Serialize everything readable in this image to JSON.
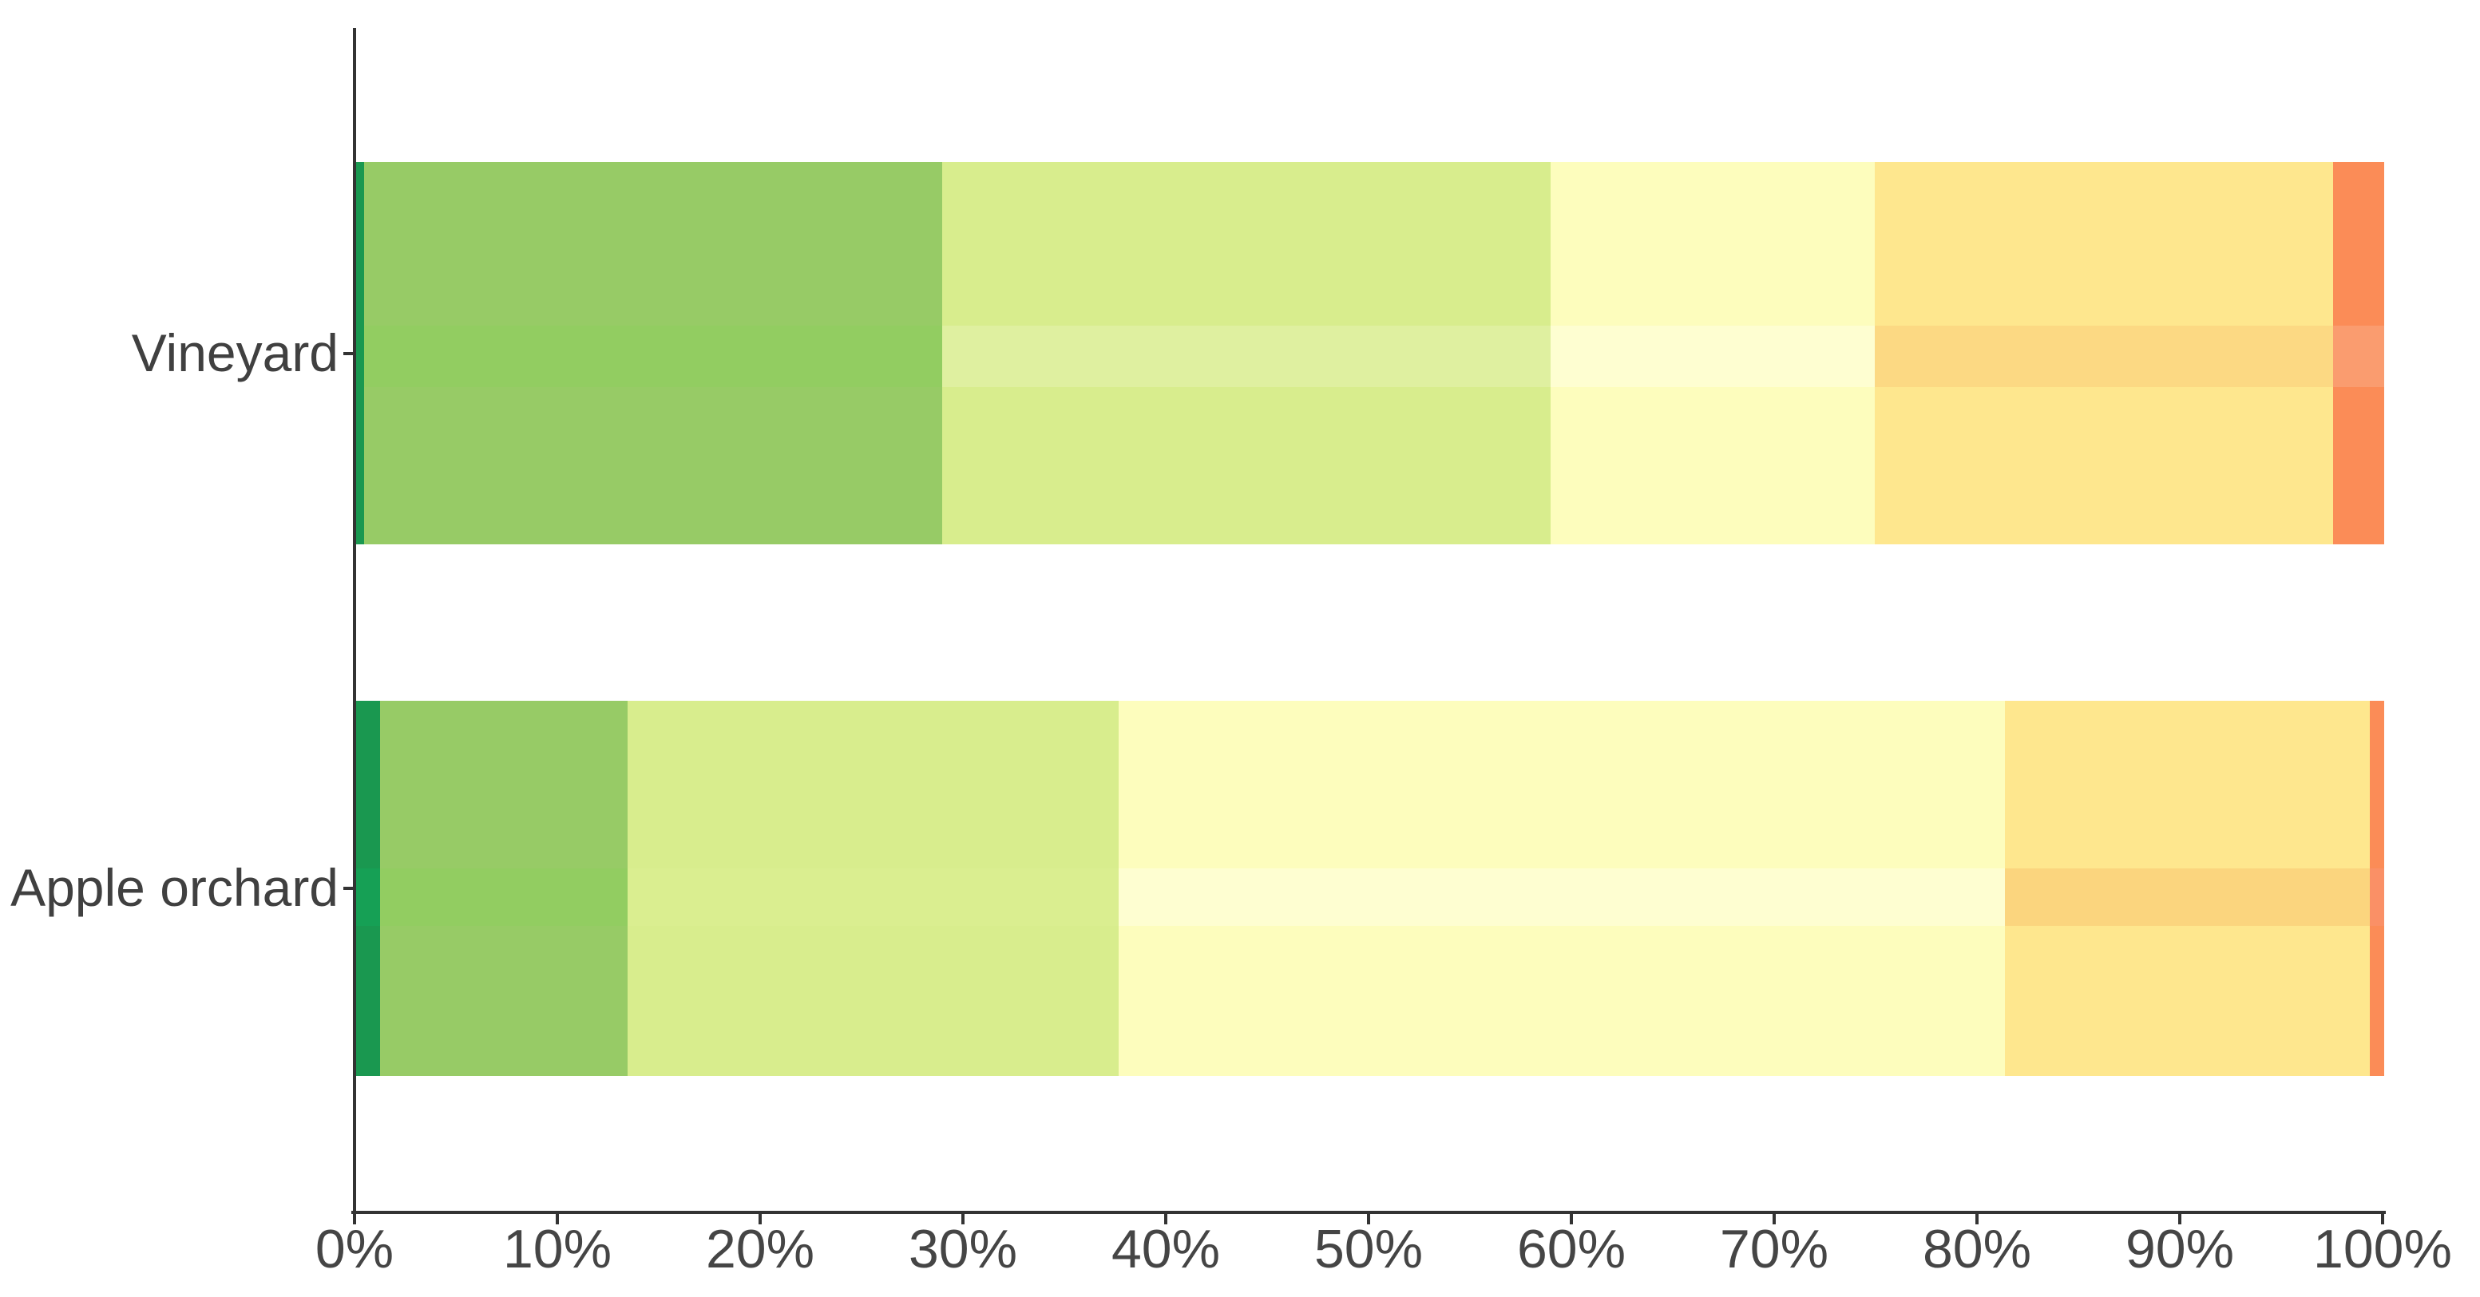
{
  "chart_data": {
    "type": "bar",
    "orientation": "horizontal",
    "stacked": true,
    "value_format": "percent_of_total",
    "title": "",
    "xlabel": "",
    "ylabel": "",
    "legend": "none",
    "grid": "off",
    "categories": [
      "Vineyard",
      "Apple orchard"
    ],
    "series": [
      {
        "name": "dark-green",
        "color": "#1a9850",
        "band_colors": [
          "#1a9850",
          "#16a055"
        ],
        "values": [
          0.4,
          1.2
        ]
      },
      {
        "name": "green",
        "color": "#97cb66",
        "band_colors": [
          "#92cd61",
          "#92cd61"
        ],
        "values": [
          28.5,
          12.2
        ]
      },
      {
        "name": "light-green",
        "color": "#d8ed8d",
        "band_colors": [
          "#dff0a0",
          "#daee90"
        ],
        "values": [
          30.0,
          24.2
        ]
      },
      {
        "name": "pale-yellow",
        "color": "#fdfdbd",
        "band_colors": [
          "#fefed1",
          "#fefed1"
        ],
        "values": [
          16.0,
          43.7
        ]
      },
      {
        "name": "yellow",
        "color": "#fee78e",
        "band_colors": [
          "#fcd983",
          "#fbd57e"
        ],
        "values": [
          22.6,
          18.0
        ]
      },
      {
        "name": "orange",
        "color": "#fb8c57",
        "band_colors": [
          "#fa9c6f",
          "#fa9066"
        ],
        "values": [
          2.5,
          0.7
        ]
      }
    ],
    "x_axis": {
      "min": 0,
      "max": 100,
      "tick_labels": [
        "0%",
        "10%",
        "20%",
        "30%",
        "40%",
        "50%",
        "60%",
        "70%",
        "80%",
        "90%",
        "100%"
      ]
    }
  },
  "styles": {
    "background": "#ffffff",
    "axis_line_color": "#333333",
    "tick_label_color": "#454545",
    "category_label_color": "#404040"
  }
}
